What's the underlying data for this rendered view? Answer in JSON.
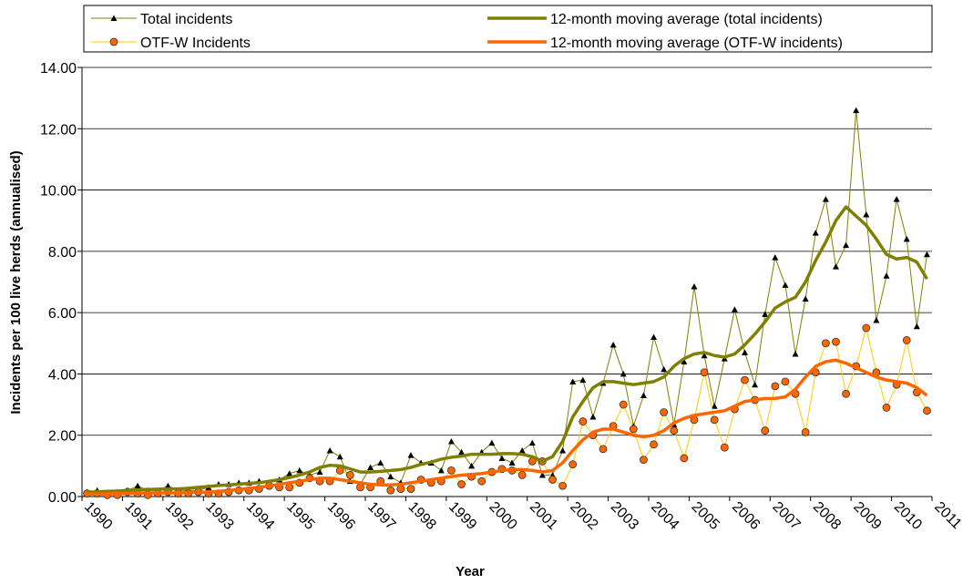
{
  "chart_data": {
    "type": "line",
    "x_label": "Year",
    "y_label": "Incidents per 100 live herds (annualised)",
    "xlim": [
      1990,
      2011
    ],
    "xticks": [
      1990,
      1991,
      1992,
      1993,
      1994,
      1995,
      1996,
      1997,
      1998,
      1999,
      2000,
      2001,
      2002,
      2003,
      2004,
      2005,
      2006,
      2007,
      2008,
      2009,
      2010,
      2011
    ],
    "ylim": [
      0,
      14
    ],
    "yticks": [
      {
        "value": 0,
        "label": "0.00"
      },
      {
        "value": 2,
        "label": "2.00"
      },
      {
        "value": 4,
        "label": "4.00"
      },
      {
        "value": 6,
        "label": "6.00"
      },
      {
        "value": 8,
        "label": "8.00"
      },
      {
        "value": 10,
        "label": "10.00"
      },
      {
        "value": 12,
        "label": "12.00"
      },
      {
        "value": 14,
        "label": "14.00"
      }
    ],
    "grid": true,
    "legend": "top",
    "x": [
      1990.125,
      1990.375,
      1990.625,
      1990.875,
      1991.125,
      1991.375,
      1991.625,
      1991.875,
      1992.125,
      1992.375,
      1992.625,
      1992.875,
      1993.125,
      1993.375,
      1993.625,
      1993.875,
      1994.125,
      1994.375,
      1994.625,
      1994.875,
      1995.125,
      1995.375,
      1995.625,
      1995.875,
      1996.125,
      1996.375,
      1996.625,
      1996.875,
      1997.125,
      1997.375,
      1997.625,
      1997.875,
      1998.125,
      1998.375,
      1998.625,
      1998.875,
      1999.125,
      1999.375,
      1999.625,
      1999.875,
      2000.125,
      2000.375,
      2000.625,
      2000.875,
      2001.125,
      2001.375,
      2001.625,
      2001.875,
      2002.125,
      2002.375,
      2002.625,
      2002.875,
      2003.125,
      2003.375,
      2003.625,
      2003.875,
      2004.125,
      2004.375,
      2004.625,
      2004.875,
      2005.125,
      2005.375,
      2005.625,
      2005.875,
      2006.125,
      2006.375,
      2006.625,
      2006.875,
      2007.125,
      2007.375,
      2007.625,
      2007.875,
      2008.125,
      2008.375,
      2008.625,
      2008.875,
      2009.125,
      2009.375,
      2009.625,
      2009.875,
      2010.125,
      2010.375,
      2010.625,
      2010.875
    ],
    "series": [
      {
        "name": "Total incidents",
        "color": "#808000",
        "marker": "triangle",
        "marker_color": "#000000",
        "line_width": 1,
        "values": [
          0.15,
          0.2,
          0.1,
          0.15,
          0.2,
          0.35,
          0.2,
          0.2,
          0.35,
          0.2,
          0.2,
          0.2,
          0.3,
          0.4,
          0.4,
          0.45,
          0.45,
          0.5,
          0.45,
          0.55,
          0.75,
          0.85,
          0.7,
          0.8,
          1.5,
          1.3,
          0.5,
          0.4,
          0.95,
          1.1,
          0.65,
          0.45,
          1.35,
          1.1,
          1.1,
          0.85,
          1.8,
          1.45,
          1.0,
          1.45,
          1.75,
          1.25,
          1.1,
          1.5,
          1.75,
          0.7,
          0.7,
          1.5,
          3.75,
          3.8,
          2.6,
          3.7,
          4.95,
          4.0,
          2.3,
          3.3,
          5.2,
          4.15,
          2.35,
          4.4,
          6.85,
          4.6,
          2.95,
          4.5,
          6.1,
          4.7,
          3.65,
          5.95,
          7.8,
          6.9,
          4.65,
          6.45,
          8.6,
          9.7,
          7.5,
          8.2,
          12.6,
          9.2,
          5.75,
          7.2,
          9.7,
          8.4,
          5.55,
          7.9
        ]
      },
      {
        "name": "OTF-W Incidents",
        "color": "#ffcc00",
        "marker": "circle",
        "marker_color": "#ff6600",
        "line_width": 1,
        "values": [
          0.1,
          0.1,
          0.05,
          0.05,
          0.15,
          0.1,
          0.05,
          0.1,
          0.15,
          0.1,
          0.1,
          0.15,
          0.1,
          0.1,
          0.15,
          0.2,
          0.2,
          0.25,
          0.35,
          0.3,
          0.3,
          0.45,
          0.6,
          0.5,
          0.5,
          0.85,
          0.7,
          0.3,
          0.3,
          0.5,
          0.2,
          0.25,
          0.25,
          0.55,
          0.45,
          0.5,
          0.85,
          0.4,
          0.65,
          0.5,
          0.8,
          0.9,
          0.85,
          0.7,
          1.15,
          1.15,
          0.55,
          0.35,
          1.05,
          2.45,
          2.0,
          1.55,
          2.3,
          3.0,
          2.2,
          1.2,
          1.7,
          2.75,
          2.15,
          1.25,
          2.5,
          4.05,
          2.5,
          1.6,
          2.85,
          3.8,
          3.15,
          2.15,
          3.6,
          3.75,
          3.35,
          2.1,
          4.05,
          5.0,
          5.05,
          3.35,
          4.25,
          5.5,
          4.05,
          2.9,
          3.65,
          5.1,
          3.4,
          2.8
        ]
      },
      {
        "name": "12-month moving average (total incidents)",
        "color": "#808000",
        "marker": "none",
        "line_width": 3.5,
        "values": [
          0.15,
          0.15,
          0.17,
          0.18,
          0.2,
          0.22,
          0.23,
          0.24,
          0.25,
          0.25,
          0.27,
          0.3,
          0.33,
          0.36,
          0.38,
          0.4,
          0.43,
          0.45,
          0.5,
          0.55,
          0.62,
          0.7,
          0.8,
          0.95,
          1.02,
          1.0,
          0.9,
          0.8,
          0.8,
          0.82,
          0.85,
          0.88,
          0.95,
          1.05,
          1.12,
          1.22,
          1.28,
          1.32,
          1.38,
          1.38,
          1.38,
          1.4,
          1.4,
          1.38,
          1.3,
          1.15,
          1.3,
          1.8,
          2.6,
          3.1,
          3.55,
          3.75,
          3.75,
          3.7,
          3.65,
          3.7,
          3.75,
          3.9,
          4.25,
          4.5,
          4.65,
          4.7,
          4.6,
          4.55,
          4.65,
          4.95,
          5.3,
          5.7,
          6.15,
          6.35,
          6.5,
          7.0,
          7.7,
          8.3,
          9.0,
          9.45,
          9.15,
          8.85,
          8.4,
          7.9,
          7.75,
          7.8,
          7.65,
          7.1
        ]
      },
      {
        "name": "12-month moving average (OTF-W incidents)",
        "color": "#ff6600",
        "marker": "none",
        "line_width": 3.5,
        "values": [
          0.08,
          0.08,
          0.09,
          0.1,
          0.1,
          0.11,
          0.12,
          0.12,
          0.12,
          0.12,
          0.13,
          0.14,
          0.15,
          0.17,
          0.2,
          0.23,
          0.27,
          0.3,
          0.35,
          0.4,
          0.45,
          0.5,
          0.55,
          0.6,
          0.6,
          0.55,
          0.5,
          0.45,
          0.4,
          0.38,
          0.38,
          0.4,
          0.45,
          0.5,
          0.55,
          0.6,
          0.65,
          0.7,
          0.72,
          0.75,
          0.8,
          0.85,
          0.88,
          0.88,
          0.85,
          0.8,
          0.85,
          1.1,
          1.5,
          1.85,
          2.1,
          2.2,
          2.2,
          2.1,
          2.0,
          1.95,
          2.0,
          2.15,
          2.4,
          2.55,
          2.65,
          2.7,
          2.75,
          2.8,
          2.95,
          3.1,
          3.15,
          3.2,
          3.2,
          3.25,
          3.5,
          3.9,
          4.25,
          4.4,
          4.45,
          4.35,
          4.2,
          4.05,
          3.9,
          3.8,
          3.75,
          3.7,
          3.55,
          3.3
        ]
      }
    ]
  }
}
